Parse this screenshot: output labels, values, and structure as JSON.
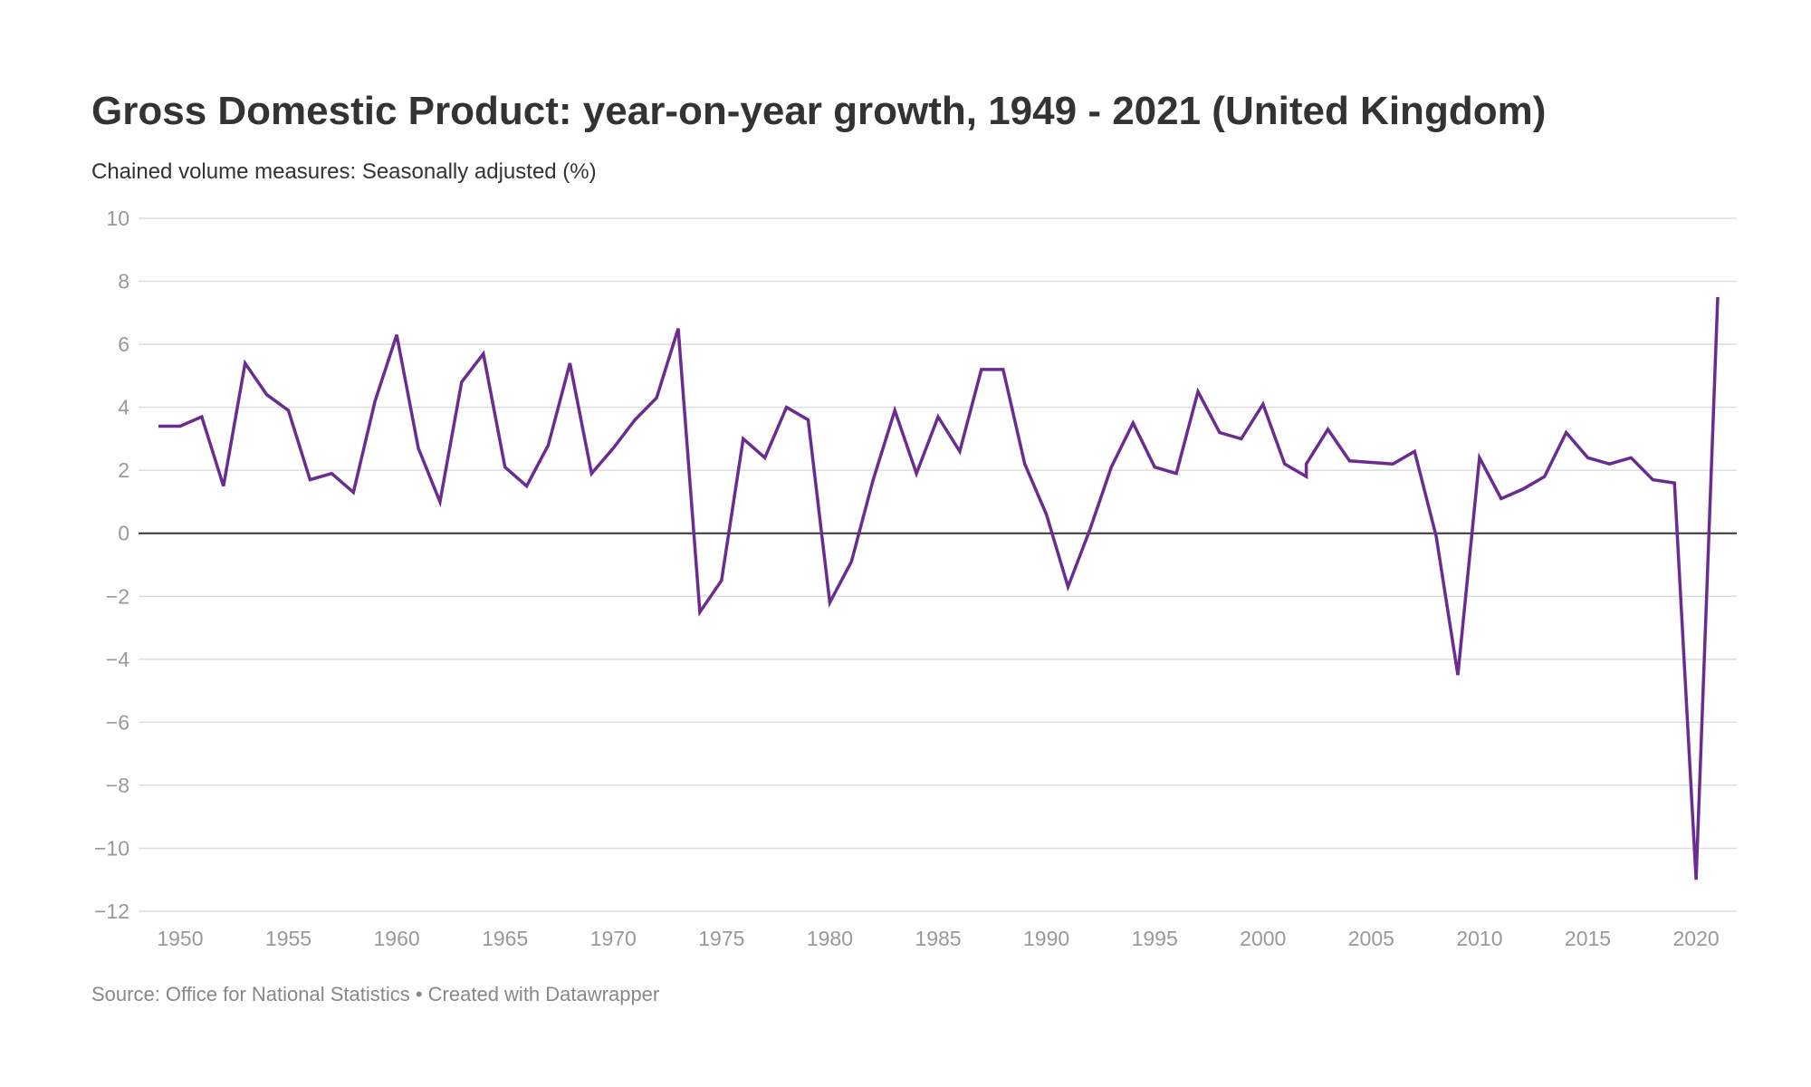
{
  "chart_data": {
    "type": "line",
    "title": "Gross Domestic Product: year-on-year growth, 1949 - 2021 (United Kingdom)",
    "subtitle": "Chained volume measures: Seasonally adjusted (%)",
    "notes": "Source: Office for National Statistics • Created with Datawrapper",
    "xlabel": "",
    "ylabel": "",
    "xlim": [
      1949,
      2021
    ],
    "ylim": [
      -12,
      10
    ],
    "x_ticks": [
      1950,
      1955,
      1960,
      1965,
      1970,
      1975,
      1980,
      1985,
      1990,
      1995,
      2000,
      2005,
      2010,
      2015,
      2020
    ],
    "y_ticks": [
      10,
      8,
      6,
      4,
      2,
      0,
      -2,
      -4,
      -6,
      -8,
      -10,
      -12
    ],
    "grid": true,
    "legend": "none",
    "colors": {
      "line": "#6a2c91",
      "grid": "#dddddd",
      "zero_line": "#333333"
    },
    "series": [
      {
        "x": [
          1949,
          1950,
          1951,
          1952,
          1953,
          1954,
          1955,
          1956,
          1957,
          1958,
          1959,
          1960,
          1961,
          1962,
          1963,
          1964,
          1965,
          1966,
          1967,
          1968,
          1969,
          1970,
          1971,
          1972,
          1973,
          1974,
          1975,
          1976,
          1977,
          1978,
          1979,
          1980,
          1981,
          1982,
          1983,
          1984,
          1985,
          1986,
          1987,
          1988,
          1989,
          1990,
          1991,
          1992,
          1993,
          1994,
          1995,
          1996,
          1997,
          1998,
          1999,
          2000,
          2001,
          2002,
          2002,
          2003,
          2004,
          2005,
          2006,
          2007,
          2008,
          2009,
          2010,
          2011,
          2012,
          2013,
          2014,
          2015,
          2016,
          2017,
          2018,
          2019,
          2020,
          2021
        ],
        "values": [
          3.4,
          3.4,
          3.7,
          1.5,
          5.4,
          4.4,
          3.9,
          1.7,
          1.9,
          1.3,
          4.2,
          6.3,
          2.7,
          1.0,
          4.8,
          5.7,
          2.1,
          1.5,
          2.8,
          5.4,
          1.9,
          2.7,
          3.6,
          4.3,
          6.5,
          -2.5,
          -1.5,
          3.0,
          2.4,
          4.0,
          3.6,
          -2.2,
          -0.9,
          1.7,
          3.9,
          1.9,
          3.7,
          2.6,
          5.2,
          5.2,
          2.2,
          0.6,
          -1.7,
          0.1,
          2.1,
          3.5,
          2.1,
          1.9,
          4.5,
          3.2,
          3.0,
          4.1,
          2.2,
          1.8,
          2.2,
          3.3,
          2.3,
          2.25,
          2.2,
          2.6,
          -0.1,
          -4.5,
          2.4,
          1.1,
          1.4,
          1.8,
          3.2,
          2.4,
          2.2,
          2.4,
          1.7,
          1.6,
          -11.0,
          7.5
        ]
      }
    ]
  }
}
